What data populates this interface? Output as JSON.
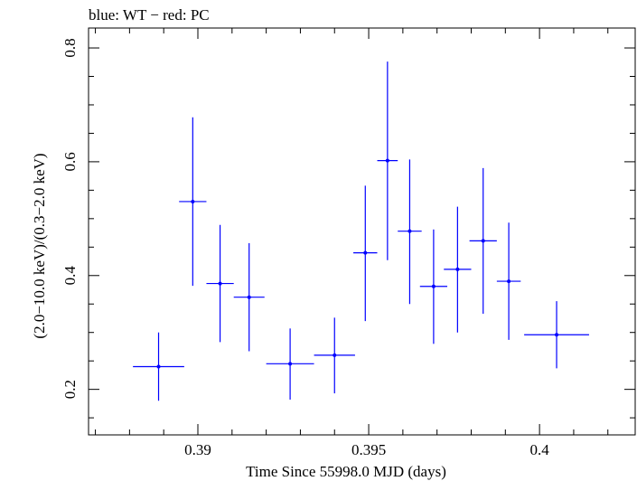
{
  "chart_data": {
    "type": "scatter",
    "title": "blue: WT − red: PC",
    "xlabel": "Time Since 55998.0 MJD (days)",
    "ylabel": "(2.0−10.0 keV)/(0.3−2.0 keV)",
    "xlim": [
      0.3868,
      0.4028
    ],
    "ylim": [
      0.12,
      0.835
    ],
    "x_ticks": [
      0.39,
      0.395,
      0.4
    ],
    "x_tick_labels": [
      "0.39",
      "0.395",
      "0.4"
    ],
    "y_ticks": [
      0.2,
      0.4,
      0.6,
      0.8
    ],
    "y_tick_labels": [
      "0.2",
      "0.4",
      "0.6",
      "0.8"
    ],
    "grid": false,
    "series": [
      {
        "color": "#0000ff",
        "points": [
          {
            "x": 0.38885,
            "xerr": 0.00075,
            "y": 0.24,
            "ylo": 0.18,
            "yhi": 0.3
          },
          {
            "x": 0.38985,
            "xerr": 0.0004,
            "y": 0.53,
            "ylo": 0.382,
            "yhi": 0.678
          },
          {
            "x": 0.39065,
            "xerr": 0.0004,
            "y": 0.386,
            "ylo": 0.283,
            "yhi": 0.489
          },
          {
            "x": 0.3915,
            "xerr": 0.00045,
            "y": 0.362,
            "ylo": 0.267,
            "yhi": 0.457
          },
          {
            "x": 0.3927,
            "xerr": 0.0007,
            "y": 0.245,
            "ylo": 0.182,
            "yhi": 0.307
          },
          {
            "x": 0.394,
            "xerr": 0.0006,
            "y": 0.26,
            "ylo": 0.193,
            "yhi": 0.326
          },
          {
            "x": 0.3949,
            "xerr": 0.00035,
            "y": 0.44,
            "ylo": 0.32,
            "yhi": 0.558
          },
          {
            "x": 0.39555,
            "xerr": 0.0003,
            "y": 0.602,
            "ylo": 0.427,
            "yhi": 0.776
          },
          {
            "x": 0.3962,
            "xerr": 0.00035,
            "y": 0.478,
            "ylo": 0.35,
            "yhi": 0.604
          },
          {
            "x": 0.3969,
            "xerr": 0.0004,
            "y": 0.381,
            "ylo": 0.28,
            "yhi": 0.481
          },
          {
            "x": 0.3976,
            "xerr": 0.0004,
            "y": 0.411,
            "ylo": 0.3,
            "yhi": 0.521
          },
          {
            "x": 0.39835,
            "xerr": 0.0004,
            "y": 0.461,
            "ylo": 0.333,
            "yhi": 0.589
          },
          {
            "x": 0.3991,
            "xerr": 0.00035,
            "y": 0.39,
            "ylo": 0.287,
            "yhi": 0.493
          },
          {
            "x": 0.4005,
            "xerr": 0.00095,
            "y": 0.296,
            "ylo": 0.237,
            "yhi": 0.355
          }
        ]
      }
    ]
  }
}
